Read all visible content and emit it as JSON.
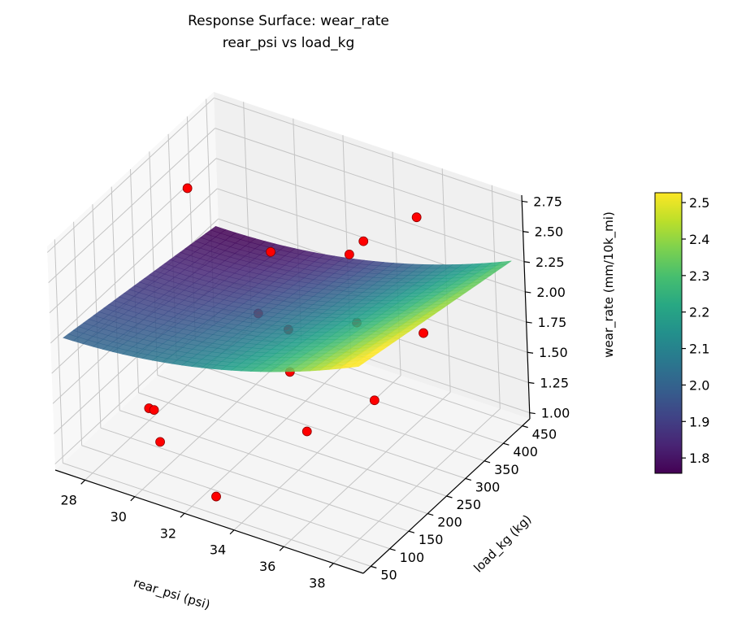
{
  "chart_data": {
    "type": "surface3d",
    "title": "Response Surface: wear_rate",
    "subtitle": "rear_psi vs load_kg",
    "xlabel": "rear_psi (psi)",
    "ylabel": "load_kg (kg)",
    "zlabel": "wear_rate (mm/10k_mi)",
    "xticks": [
      28,
      30,
      32,
      34,
      36,
      38
    ],
    "yticks": [
      50,
      100,
      150,
      200,
      250,
      300,
      350,
      400,
      450
    ],
    "zticks": [
      "1.00",
      "1.25",
      "1.50",
      "1.75",
      "2.00",
      "2.25",
      "2.50",
      "2.75"
    ],
    "xlim": [
      26.8,
      39.2
    ],
    "ylim": [
      30,
      470
    ],
    "zlim": [
      0.95,
      2.8
    ],
    "surface": {
      "x_range": [
        27,
        39
      ],
      "y_range": [
        50,
        450
      ],
      "colormap": "viridis",
      "alpha": 0.85
    },
    "colorbar": {
      "range": [
        1.758,
        2.527
      ],
      "ticks": [
        "1.8",
        "1.9",
        "2.0",
        "2.1",
        "2.2",
        "2.3",
        "2.4",
        "2.5"
      ]
    },
    "points": {
      "color": "#ff0000",
      "values": [
        [
          28,
          200,
          1.05
        ],
        [
          30,
          100,
          1.2
        ],
        [
          30,
          400,
          1.9
        ],
        [
          27.5,
          350,
          2.4
        ],
        [
          33,
          50,
          1.1
        ],
        [
          33,
          250,
          1.55
        ],
        [
          33,
          450,
          2.05
        ],
        [
          36,
          100,
          1.7
        ],
        [
          36,
          400,
          2.6
        ],
        [
          38.5,
          250,
          2.25
        ],
        [
          33,
          250,
          1.9
        ],
        [
          34,
          350,
          2.3
        ],
        [
          35,
          300,
          1.95
        ],
        [
          38,
          150,
          1.95
        ],
        [
          31,
          300,
          1.75
        ],
        [
          29,
          150,
          1.25
        ]
      ]
    }
  }
}
